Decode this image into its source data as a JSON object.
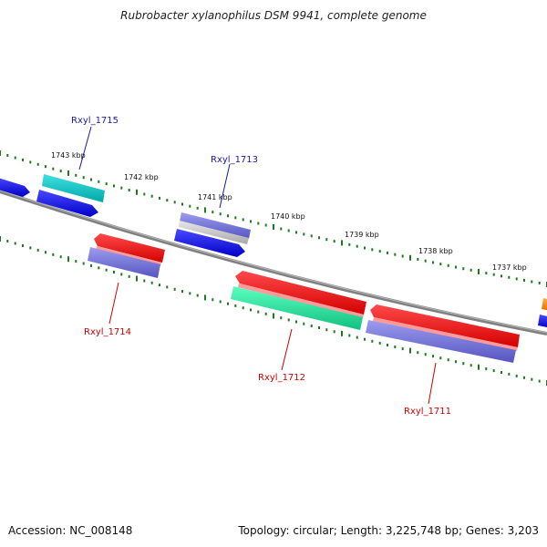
{
  "title": "Rubrobacter xylanophilus DSM 9941, complete genome",
  "footer": {
    "accession": "Accession: NC_008148",
    "summary": "Topology: circular; Length: 3,225,748 bp; Genes: 3,203"
  },
  "scale_labels": [
    "1743 kbp",
    "1742 kbp",
    "1741 kbp",
    "1740 kbp",
    "1739 kbp",
    "1738 kbp",
    "1737 kbp"
  ],
  "gene_labels": {
    "rxyl_1715": "Rxyl_1715",
    "rxyl_1713": "Rxyl_1713",
    "rxyl_1714": "Rxyl_1714",
    "rxyl_1712": "Rxyl_1712",
    "rxyl_1711": "Rxyl_1711"
  },
  "colors": {
    "forward_label": "#1a1aa8",
    "reverse_label": "#cc0000",
    "backbone": "#808080",
    "ticks": "#1f7a1f"
  }
}
